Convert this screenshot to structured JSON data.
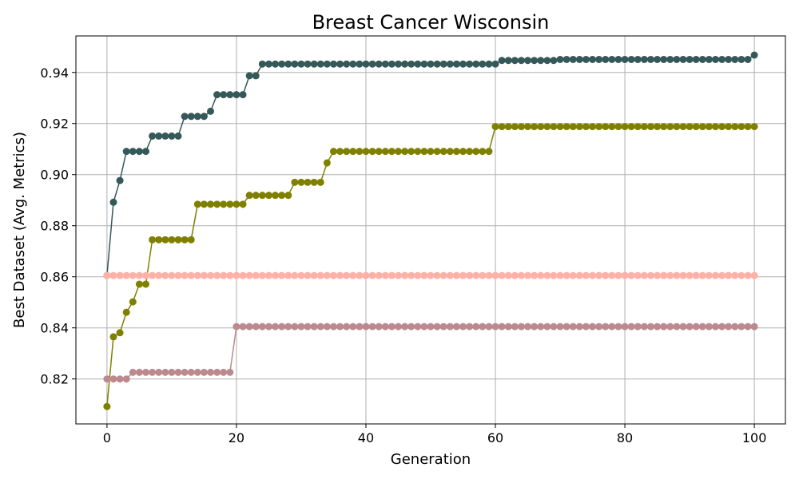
{
  "chart_data": {
    "type": "line",
    "title": "Breast Cancer Wisconsin",
    "xlabel": "Generation",
    "ylabel": "Best Dataset (Avg. Metrics)",
    "xlim": [
      -4.8,
      104.8
    ],
    "ylim": [
      0.8024,
      0.9543
    ],
    "xticks": [
      0,
      20,
      40,
      60,
      80,
      100
    ],
    "yticks": [
      0.82,
      0.84,
      0.86,
      0.88,
      0.9,
      0.92,
      0.94
    ],
    "ytick_labels": [
      "0.82",
      "0.84",
      "0.86",
      "0.88",
      "0.90",
      "0.92",
      "0.94"
    ],
    "grid": true,
    "series": [
      {
        "color": "#355858",
        "steps": [
          [
            0,
            0.8605
          ],
          [
            1,
            0.8892
          ],
          [
            2,
            0.8977
          ],
          [
            3,
            0.9091
          ],
          [
            7,
            0.9151
          ],
          [
            12,
            0.9228
          ],
          [
            16,
            0.9248
          ],
          [
            17,
            0.9313
          ],
          [
            22,
            0.9387
          ],
          [
            24,
            0.9433
          ],
          [
            61,
            0.9447
          ],
          [
            70,
            0.9451
          ],
          [
            100,
            0.9468
          ]
        ]
      },
      {
        "color": "#808000",
        "steps": [
          [
            0,
            0.8092
          ],
          [
            1,
            0.8365
          ],
          [
            2,
            0.8381
          ],
          [
            3,
            0.8461
          ],
          [
            4,
            0.8502
          ],
          [
            5,
            0.8571
          ],
          [
            7,
            0.8745
          ],
          [
            14,
            0.8884
          ],
          [
            22,
            0.8919
          ],
          [
            29,
            0.897
          ],
          [
            34,
            0.9046
          ],
          [
            35,
            0.9091
          ],
          [
            60,
            0.9188
          ]
        ]
      },
      {
        "color": "#ffb1a8",
        "steps": [
          [
            0,
            0.8605
          ]
        ]
      },
      {
        "color": "#bc8a8e",
        "steps": [
          [
            0,
            0.82
          ],
          [
            4,
            0.8226
          ],
          [
            20,
            0.8405
          ]
        ]
      }
    ],
    "generations": 100
  }
}
